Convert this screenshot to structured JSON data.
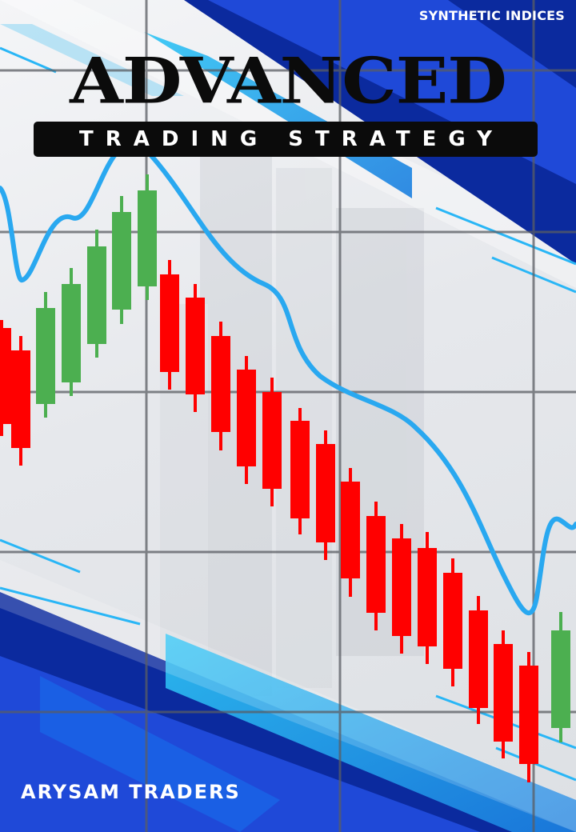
{
  "cover": {
    "tag": "SYNTHETIC INDICES",
    "title": "ADVANCED",
    "subtitle": "TRADING STRATEGY",
    "author": "ARYSAM TRADERS"
  },
  "colors": {
    "navy": "#0b2a9e",
    "royal_blue": "#1f49d8",
    "cyan": "#29b6f6",
    "bull_green": "#4caf50",
    "bear_red": "#ff0000",
    "title_black": "#0b0b0b"
  },
  "icons": {
    "candles": "candlestick-icon",
    "trend_line": "moving-average-line"
  }
}
